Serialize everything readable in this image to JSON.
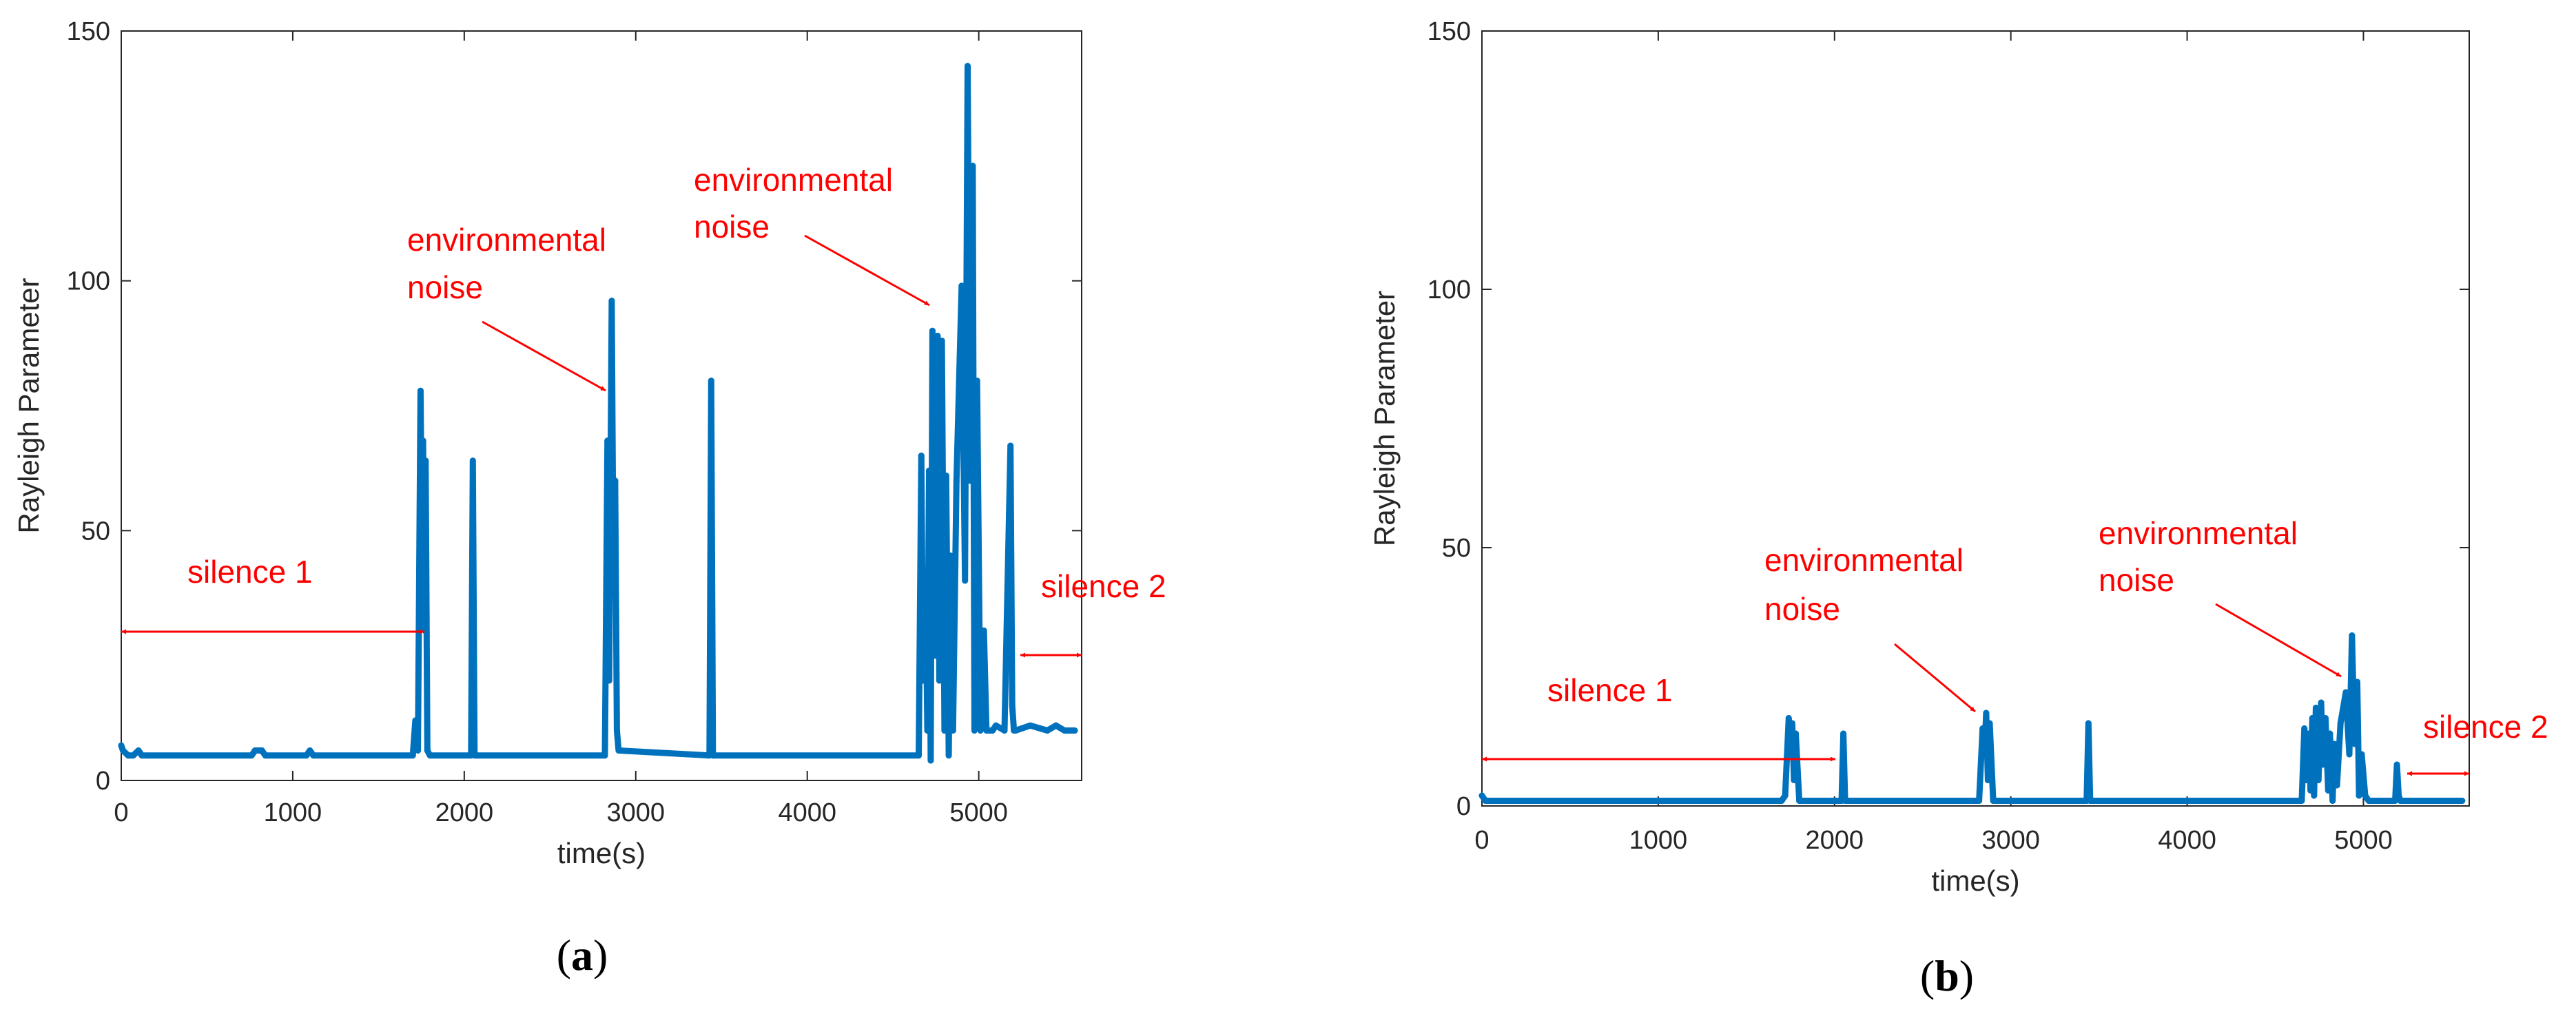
{
  "chart_data": [
    {
      "type": "line",
      "panel": "a",
      "caption_open": "(",
      "caption_letter": "a",
      "caption_close": ")",
      "xlabel": "time(s)",
      "ylabel": "Rayleigh Parameter",
      "xlim": [
        0,
        5600
      ],
      "ylim": [
        0,
        150
      ],
      "xticks": [
        0,
        1000,
        2000,
        3000,
        4000,
        5000
      ],
      "yticks": [
        0,
        50,
        100,
        150
      ],
      "grid": false,
      "color": "#0072BD",
      "baseline": 5,
      "series": [
        {
          "name": "Rayleigh parameter",
          "x": [
            0,
            10,
            40,
            70,
            100,
            120,
            150,
            760,
            780,
            820,
            840,
            1080,
            1100,
            1120,
            1700,
            1715,
            1730,
            1745,
            1755,
            1760,
            1770,
            1775,
            1785,
            1800,
            2040,
            2050,
            2060,
            2080,
            2820,
            2835,
            2845,
            2860,
            2870,
            2880,
            2890,
            2900,
            3430,
            3440,
            3450,
            3460,
            4650,
            4665,
            4675,
            4690,
            4700,
            4710,
            4720,
            4730,
            4745,
            4760,
            4770,
            4785,
            4800,
            4810,
            4825,
            4835,
            4850,
            4870,
            4900,
            4920,
            4935,
            4950,
            4965,
            4975,
            4990,
            5010,
            5030,
            5045,
            5060,
            5080,
            5100,
            5150,
            5185,
            5195,
            5205,
            5215,
            5300,
            5400,
            5450,
            5500,
            5560
          ],
          "y": [
            7,
            6,
            5,
            5,
            6,
            5,
            5,
            5,
            6,
            6,
            5,
            5,
            6,
            5,
            5,
            12,
            6,
            78,
            40,
            68,
            30,
            64,
            6,
            5,
            5,
            64,
            5,
            5,
            5,
            68,
            20,
            96,
            40,
            60,
            10,
            6,
            5,
            80,
            5,
            5,
            5,
            65,
            20,
            40,
            10,
            62,
            4,
            90,
            25,
            89,
            20,
            88,
            10,
            61,
            5,
            45,
            10,
            60,
            99,
            40,
            143,
            60,
            123,
            10,
            80,
            10,
            30,
            10,
            10,
            10,
            11,
            10,
            67,
            15,
            10,
            10,
            11,
            10,
            11,
            10,
            10
          ]
        }
      ],
      "annotations": [
        {
          "lines": [
            "silence 1"
          ]
        },
        {
          "lines": [
            "environmental",
            "noise"
          ]
        },
        {
          "lines": [
            "environmental",
            "noise"
          ]
        },
        {
          "lines": [
            "silence 2"
          ]
        }
      ]
    },
    {
      "type": "line",
      "panel": "b",
      "caption_open": "(",
      "caption_letter": "b",
      "caption_close": ")",
      "xlabel": "time(s)",
      "ylabel": "Rayleigh Parameter",
      "xlim": [
        0,
        5600
      ],
      "ylim": [
        0,
        150
      ],
      "xticks": [
        0,
        1000,
        2000,
        3000,
        4000,
        5000
      ],
      "yticks": [
        0,
        50,
        100,
        150
      ],
      "grid": false,
      "color": "#0072BD",
      "baseline": 1,
      "series": [
        {
          "name": "Rayleigh parameter",
          "x": [
            0,
            20,
            60,
            1700,
            1720,
            1740,
            1750,
            1760,
            1770,
            1780,
            1800,
            2040,
            2050,
            2060,
            2080,
            2820,
            2840,
            2850,
            2860,
            2870,
            2880,
            2900,
            3430,
            3440,
            3450,
            3460,
            4650,
            4665,
            4675,
            4690,
            4700,
            4710,
            4720,
            4730,
            4745,
            4760,
            4770,
            4785,
            4800,
            4810,
            4825,
            4835,
            4850,
            4870,
            4900,
            4920,
            4935,
            4950,
            4965,
            4975,
            4990,
            5010,
            5030,
            5045,
            5060,
            5080,
            5100,
            5180,
            5190,
            5200,
            5210,
            5300,
            5560
          ],
          "y": [
            2,
            1,
            1,
            1,
            2,
            17,
            10,
            16,
            5,
            14,
            1,
            1,
            14,
            1,
            1,
            1,
            15,
            10,
            18,
            5,
            16,
            1,
            1,
            16,
            1,
            1,
            1,
            15,
            5,
            14,
            3,
            17,
            2,
            19,
            5,
            20,
            8,
            17,
            3,
            14,
            1,
            12,
            4,
            16,
            22,
            10,
            33,
            12,
            24,
            2,
            10,
            2,
            1,
            1,
            1,
            1,
            1,
            1,
            8,
            2,
            1,
            1,
            1
          ]
        }
      ],
      "annotations": [
        {
          "lines": [
            "silence 1"
          ]
        },
        {
          "lines": [
            "environmental",
            "noise"
          ]
        },
        {
          "lines": [
            "environmental",
            "noise"
          ]
        },
        {
          "lines": [
            "silence 2"
          ]
        }
      ]
    }
  ]
}
